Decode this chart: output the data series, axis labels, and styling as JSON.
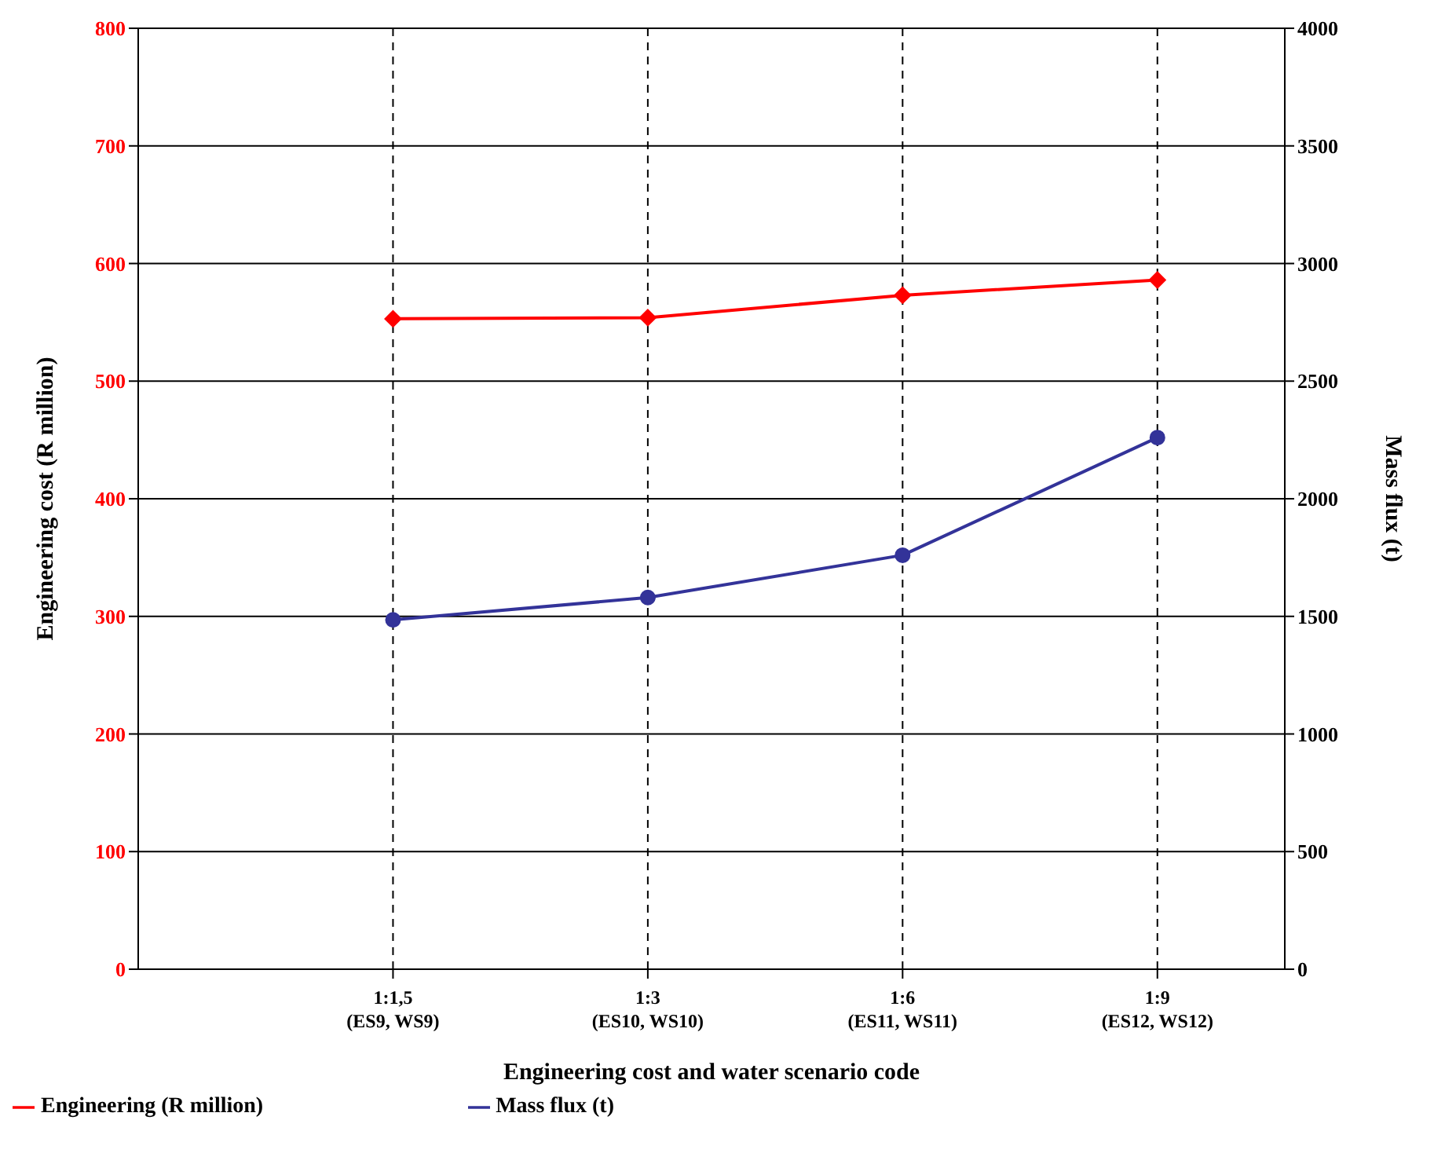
{
  "chart_data": {
    "type": "line",
    "xlabel": "Engineering cost and water scenario code",
    "ylabel": "Engineering cost (R million)",
    "y2label": "Mass flux (t)",
    "categories": [
      null,
      "1:1,5\n(ES9, WS9)",
      "1:3\n(ES10, WS10)",
      "1:6\n(ES11, WS11)",
      "1:9\n(ES12, WS12)"
    ],
    "series": [
      {
        "name": "Engineering (R million)",
        "color": "#ff0000",
        "marker": "diamond",
        "values": [
          null,
          553,
          554,
          573,
          586
        ]
      },
      {
        "name": "Mass flux (t)",
        "color": "#333399",
        "marker": "circle",
        "axis": "y2",
        "values": [
          null,
          1485,
          1580,
          1760,
          2260
        ]
      }
    ],
    "ylim": [
      0,
      800
    ],
    "yticks": [
      0,
      100,
      200,
      300,
      400,
      500,
      600,
      700,
      800
    ],
    "y2lim": [
      0,
      4000
    ],
    "y2ticks": [
      0,
      500,
      1000,
      1500,
      2000,
      2500,
      3000,
      3500,
      4000
    ],
    "grid": true,
    "legend": "bottom left"
  }
}
